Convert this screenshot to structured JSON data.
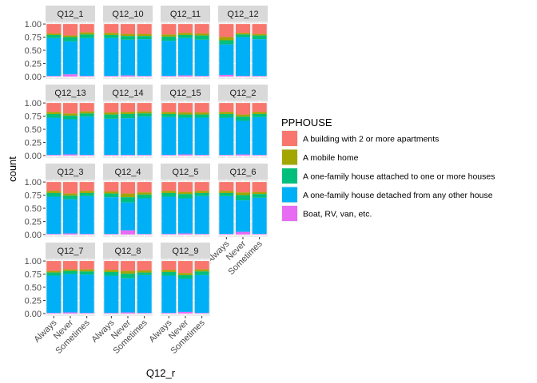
{
  "chart_data": {
    "type": "bar",
    "stacked": true,
    "position": "fill",
    "xlabel": "Q12_r",
    "ylabel": "count",
    "yticks": [
      "0.00",
      "0.25",
      "0.50",
      "0.75",
      "1.00"
    ],
    "ylim": [
      0,
      1
    ],
    "categories": [
      "Always",
      "Never",
      "Sometimes"
    ],
    "legend": {
      "title": "PPHOUSE",
      "position": "right",
      "entries": [
        {
          "name": "A building with 2 or more apartments",
          "color": "#F8766D"
        },
        {
          "name": "A mobile home",
          "color": "#A3A500"
        },
        {
          "name": "A one-family house attached to one or more houses",
          "color": "#00BF7D"
        },
        {
          "name": "A one-family house detached from any other house",
          "color": "#00B0F6"
        },
        {
          "name": "Boat, RV, van, etc.",
          "color": "#E76BF3"
        }
      ]
    },
    "panels": [
      {
        "label": "Q12_1",
        "bars": [
          [
            0.18,
            0.03,
            0.06,
            0.72,
            0.01
          ],
          [
            0.22,
            0.03,
            0.08,
            0.63,
            0.04
          ],
          [
            0.16,
            0.04,
            0.07,
            0.72,
            0.01
          ]
        ]
      },
      {
        "label": "Q12_10",
        "bars": [
          [
            0.17,
            0.04,
            0.06,
            0.72,
            0.01
          ],
          [
            0.19,
            0.04,
            0.07,
            0.68,
            0.02
          ],
          [
            0.19,
            0.04,
            0.06,
            0.7,
            0.01
          ]
        ]
      },
      {
        "label": "Q12_11",
        "bars": [
          [
            0.2,
            0.04,
            0.08,
            0.67,
            0.01
          ],
          [
            0.17,
            0.04,
            0.06,
            0.71,
            0.02
          ],
          [
            0.18,
            0.04,
            0.08,
            0.69,
            0.01
          ]
        ]
      },
      {
        "label": "Q12_12",
        "bars": [
          [
            0.25,
            0.06,
            0.08,
            0.58,
            0.03
          ],
          [
            0.17,
            0.03,
            0.05,
            0.74,
            0.01
          ],
          [
            0.19,
            0.03,
            0.07,
            0.7,
            0.01
          ]
        ]
      },
      {
        "label": "Q12_13",
        "bars": [
          [
            0.17,
            0.04,
            0.07,
            0.71,
            0.01
          ],
          [
            0.2,
            0.04,
            0.07,
            0.67,
            0.02
          ],
          [
            0.16,
            0.04,
            0.06,
            0.73,
            0.01
          ]
        ]
      },
      {
        "label": "Q12_14",
        "bars": [
          [
            0.18,
            0.04,
            0.08,
            0.69,
            0.01
          ],
          [
            0.17,
            0.04,
            0.08,
            0.7,
            0.01
          ],
          [
            0.16,
            0.04,
            0.06,
            0.73,
            0.01
          ]
        ]
      },
      {
        "label": "Q12_15",
        "bars": [
          [
            0.17,
            0.04,
            0.06,
            0.72,
            0.01
          ],
          [
            0.18,
            0.04,
            0.06,
            0.7,
            0.02
          ],
          [
            0.18,
            0.04,
            0.06,
            0.71,
            0.01
          ]
        ]
      },
      {
        "label": "Q12_2",
        "bars": [
          [
            0.17,
            0.04,
            0.07,
            0.71,
            0.01
          ],
          [
            0.22,
            0.04,
            0.08,
            0.64,
            0.02
          ],
          [
            0.17,
            0.04,
            0.06,
            0.72,
            0.01
          ]
        ]
      },
      {
        "label": "Q12_3",
        "bars": [
          [
            0.17,
            0.04,
            0.07,
            0.71,
            0.01
          ],
          [
            0.22,
            0.04,
            0.07,
            0.65,
            0.02
          ],
          [
            0.17,
            0.04,
            0.06,
            0.72,
            0.01
          ]
        ]
      },
      {
        "label": "Q12_4",
        "bars": [
          [
            0.18,
            0.04,
            0.07,
            0.7,
            0.01
          ],
          [
            0.22,
            0.07,
            0.1,
            0.53,
            0.08
          ],
          [
            0.2,
            0.04,
            0.07,
            0.68,
            0.01
          ]
        ]
      },
      {
        "label": "Q12_5",
        "bars": [
          [
            0.17,
            0.04,
            0.07,
            0.71,
            0.01
          ],
          [
            0.19,
            0.04,
            0.08,
            0.67,
            0.02
          ],
          [
            0.17,
            0.04,
            0.06,
            0.72,
            0.01
          ]
        ]
      },
      {
        "label": "Q12_6",
        "bars": [
          [
            0.17,
            0.04,
            0.06,
            0.72,
            0.01
          ],
          [
            0.2,
            0.05,
            0.1,
            0.6,
            0.05
          ],
          [
            0.19,
            0.04,
            0.07,
            0.69,
            0.01
          ]
        ]
      },
      {
        "label": "Q12_7",
        "bars": [
          [
            0.19,
            0.03,
            0.06,
            0.71,
            0.01
          ],
          [
            0.16,
            0.03,
            0.06,
            0.73,
            0.02
          ],
          [
            0.16,
            0.04,
            0.06,
            0.73,
            0.01
          ]
        ]
      },
      {
        "label": "Q12_8",
        "bars": [
          [
            0.17,
            0.04,
            0.07,
            0.71,
            0.01
          ],
          [
            0.19,
            0.05,
            0.09,
            0.65,
            0.02
          ],
          [
            0.18,
            0.04,
            0.05,
            0.72,
            0.01
          ]
        ]
      },
      {
        "label": "Q12_9",
        "bars": [
          [
            0.17,
            0.04,
            0.07,
            0.71,
            0.01
          ],
          [
            0.23,
            0.04,
            0.07,
            0.63,
            0.03
          ],
          [
            0.16,
            0.04,
            0.07,
            0.72,
            0.01
          ]
        ]
      }
    ]
  }
}
